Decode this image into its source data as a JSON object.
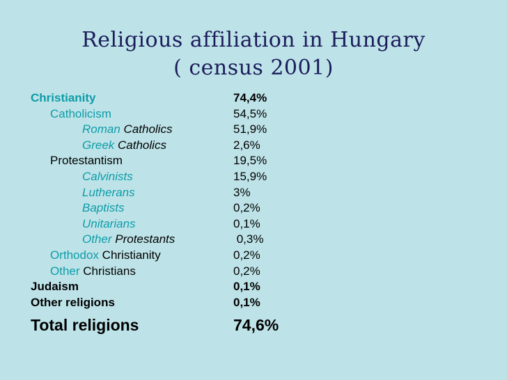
{
  "title": {
    "line1": "Religious affiliation in Hungary",
    "line2": "( census 2001)"
  },
  "rows": [
    {
      "part1": "Christianity",
      "part2": "",
      "value": "74,4%"
    },
    {
      "part1": "Catholicism",
      "part2": "",
      "value": "54,5%"
    },
    {
      "part1": "Roman",
      "part2": " Catholics",
      "value": "51,9%"
    },
    {
      "part1": "Greek",
      "part2": " Catholics",
      "value": "2,6%"
    },
    {
      "part1": "",
      "part2": "Protestantism",
      "value": "19,5%"
    },
    {
      "part1": "Calvinists",
      "part2": "",
      "value": "15,9%"
    },
    {
      "part1": "Lutherans",
      "part2": "",
      "value": "3%"
    },
    {
      "part1": "Baptists",
      "part2": "",
      "value": "0,2%"
    },
    {
      "part1": "Unitarians",
      "part2": "",
      "value": "0,1%"
    },
    {
      "part1": "Other",
      "part2": " Protestants",
      "value": " 0,3%"
    },
    {
      "part1": "Orthodox",
      "part2": " Christianity",
      "value": "0,2%"
    },
    {
      "part1": "Other",
      "part2": " Christians",
      "value": "0,2%"
    },
    {
      "part1": "",
      "part2": "Judaism",
      "value": "0,1%"
    },
    {
      "part1": "",
      "part2": "Other religions",
      "value": "0,1%"
    },
    {
      "part1": "",
      "part2": "Total religions",
      "value": "74,6%"
    }
  ]
}
